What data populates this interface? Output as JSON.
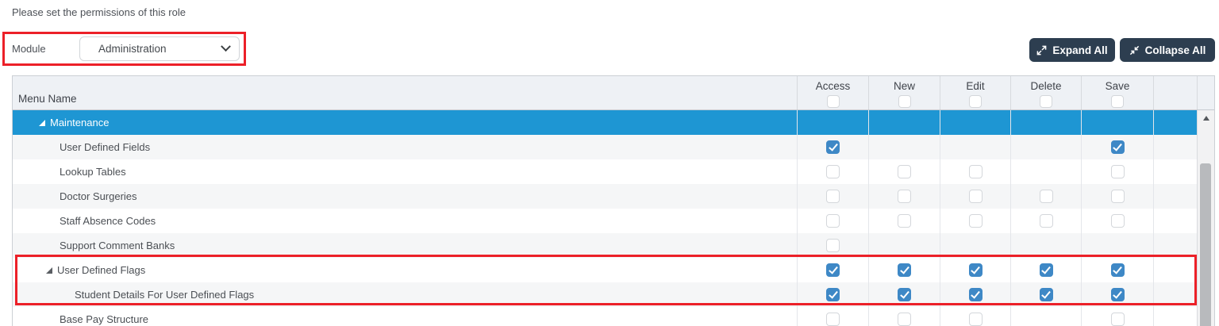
{
  "intro": "Please set the permissions of this role",
  "module": {
    "label": "Module",
    "value": "Administration"
  },
  "toolbar": {
    "expand_label": "Expand All",
    "collapse_label": "Collapse All"
  },
  "table": {
    "menu_header": "Menu Name",
    "columns": [
      "Access",
      "New",
      "Edit",
      "Delete",
      "Save"
    ],
    "header_checkboxes": [
      "unchecked",
      "unchecked",
      "unchecked",
      "unchecked",
      "unchecked"
    ],
    "rows": [
      {
        "name": "Maintenance",
        "level": 1,
        "expanded": true,
        "selected": true,
        "cells": [
          "none",
          "none",
          "none",
          "none",
          "none"
        ]
      },
      {
        "name": "User Defined Fields",
        "level": 2,
        "expanded": false,
        "cells": [
          "checked",
          "none",
          "none",
          "none",
          "checked"
        ]
      },
      {
        "name": "Lookup Tables",
        "level": 2,
        "expanded": false,
        "cells": [
          "unchecked",
          "unchecked",
          "unchecked",
          "none",
          "unchecked"
        ]
      },
      {
        "name": "Doctor Surgeries",
        "level": 2,
        "expanded": false,
        "cells": [
          "unchecked",
          "unchecked",
          "unchecked",
          "unchecked",
          "unchecked"
        ]
      },
      {
        "name": "Staff Absence Codes",
        "level": 2,
        "expanded": false,
        "cells": [
          "unchecked",
          "unchecked",
          "unchecked",
          "unchecked",
          "unchecked"
        ]
      },
      {
        "name": "Support Comment Banks",
        "level": 2,
        "expanded": false,
        "cells": [
          "unchecked",
          "none",
          "none",
          "none",
          "none"
        ]
      },
      {
        "name": "User Defined Flags",
        "level": 2,
        "expanded": true,
        "cells": [
          "checked",
          "checked",
          "checked",
          "checked",
          "checked"
        ]
      },
      {
        "name": "Student Details For User Defined Flags",
        "level": 3,
        "expanded": false,
        "cells": [
          "checked",
          "checked",
          "checked",
          "checked",
          "checked"
        ]
      },
      {
        "name": "Base Pay Structure",
        "level": 2,
        "expanded": false,
        "cells": [
          "unchecked",
          "unchecked",
          "unchecked",
          "none",
          "unchecked"
        ]
      }
    ]
  },
  "colors": {
    "selected_row": "#1e96d3",
    "checkbox_checked": "#3e88c6",
    "button_navy": "#2d3e50",
    "annotation_red": "#ec2028"
  }
}
